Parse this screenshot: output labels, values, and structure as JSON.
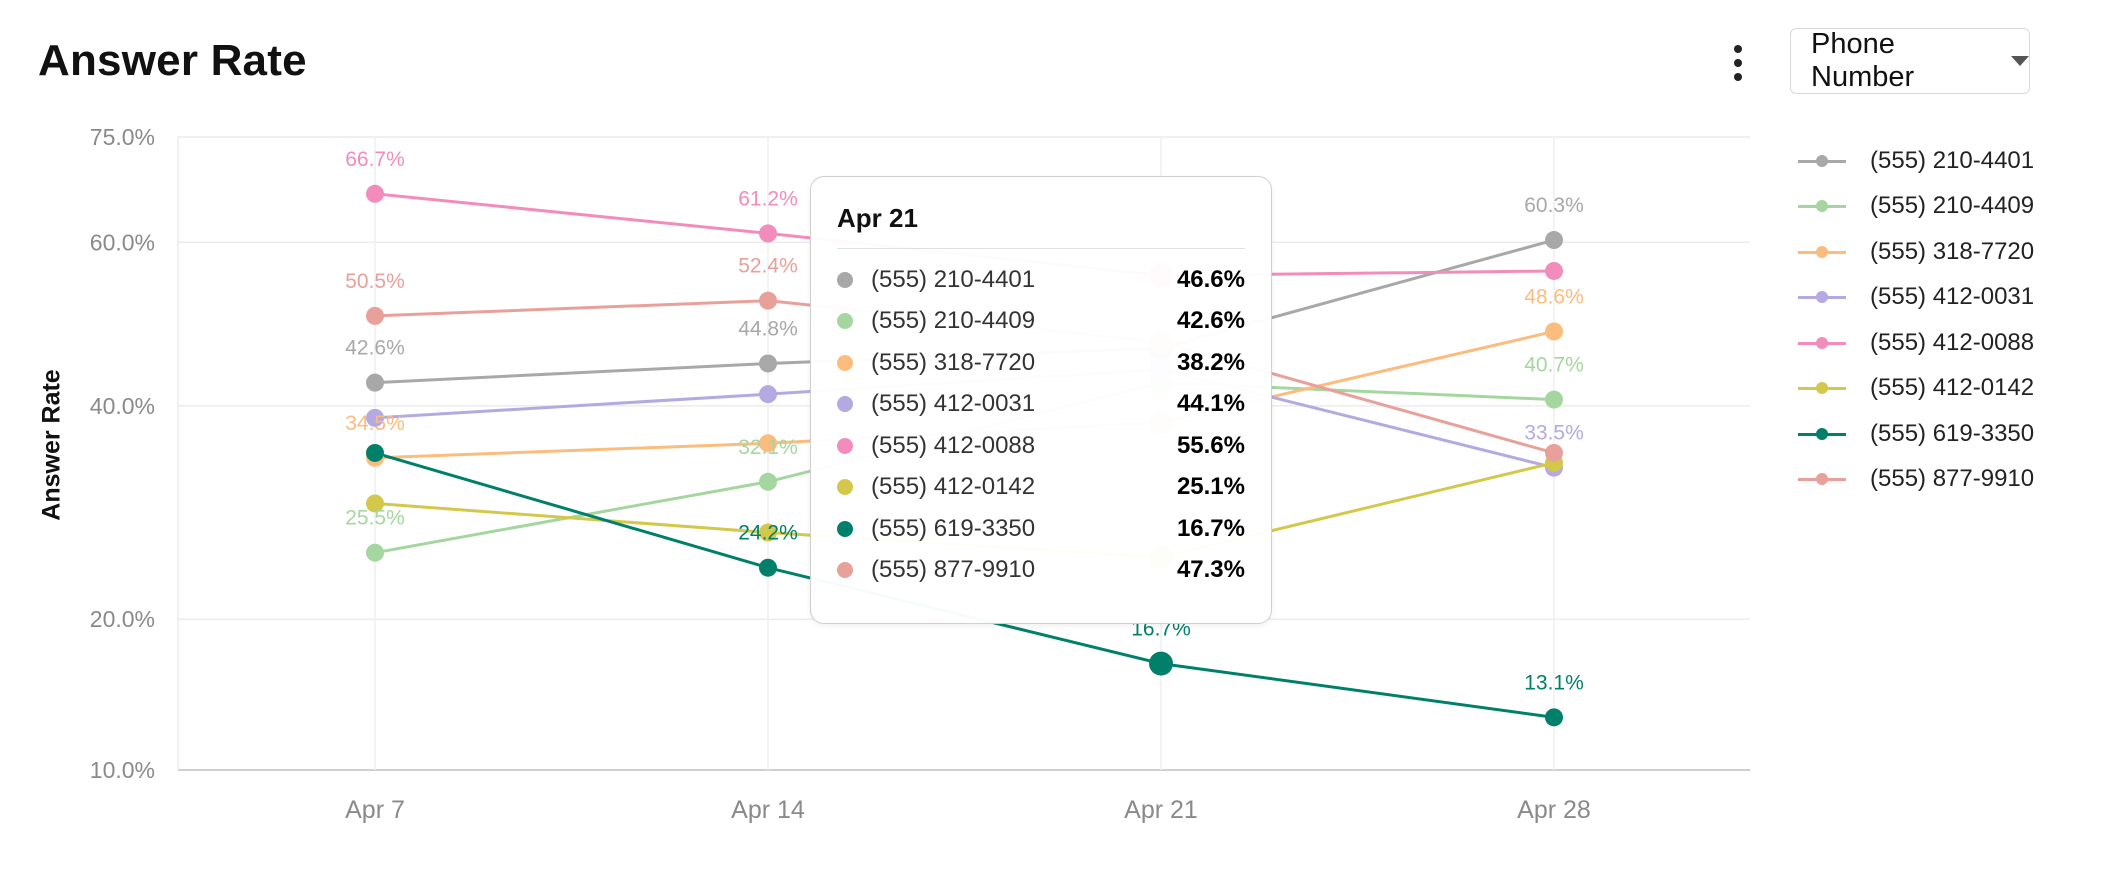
{
  "header": {
    "title": "Answer Rate",
    "dropdown_label": "Phone Number"
  },
  "chart_data": {
    "type": "line",
    "title": "Answer Rate",
    "ylabel": "Answer Rate",
    "xlabel": "",
    "categories": [
      "Apr 7",
      "Apr 14",
      "Apr 21",
      "Apr 28"
    ],
    "y_ticks": [
      "10.0%",
      "20.0%",
      "40.0%",
      "60.0%",
      "75.0%"
    ],
    "y_scale": "sqrt",
    "ylim": [
      10,
      75
    ],
    "grid": true,
    "legend_position": "right",
    "series": [
      {
        "name": "(555) 210-4401",
        "color": "#a8a8a8",
        "values": [
          42.6,
          44.8,
          46.6,
          60.3
        ],
        "labels": [
          "42.6%",
          "44.8%",
          "",
          "60.3%"
        ]
      },
      {
        "name": "(555) 210-4409",
        "color": "#a5d6a0",
        "values": [
          25.5,
          32.1,
          42.6,
          40.7
        ],
        "labels": [
          "25.5%",
          "32.1%",
          "",
          "40.7%"
        ]
      },
      {
        "name": "(555) 318-7720",
        "color": "#fbbc7d",
        "values": [
          34.5,
          36.0,
          38.2,
          48.6
        ],
        "labels": [
          "34.5%",
          "",
          "",
          "48.6%"
        ]
      },
      {
        "name": "(555) 412-0031",
        "color": "#b4a9e0",
        "values": [
          38.7,
          41.3,
          44.1,
          33.5
        ],
        "labels": [
          "",
          "",
          "",
          "33.5%"
        ]
      },
      {
        "name": "(555) 412-0088",
        "color": "#f28cbc",
        "values": [
          66.7,
          61.2,
          55.6,
          56.2
        ],
        "labels": [
          "66.7%",
          "61.2%",
          "",
          ""
        ]
      },
      {
        "name": "(555) 412-0142",
        "color": "#d4c84c",
        "values": [
          30.0,
          27.3,
          25.1,
          34.0
        ],
        "labels": [
          "",
          "",
          "",
          ""
        ]
      },
      {
        "name": "(555) 619-3350",
        "color": "#00806a",
        "values": [
          35.0,
          24.2,
          16.7,
          13.1
        ],
        "labels": [
          "",
          "24.2%",
          "16.7%",
          "13.1%"
        ]
      },
      {
        "name": "(555) 877-9910",
        "color": "#e8a09a",
        "values": [
          50.5,
          52.4,
          47.3,
          35.0
        ],
        "labels": [
          "50.5%",
          "52.4%",
          "",
          ""
        ]
      }
    ],
    "tooltip": {
      "title": "Apr 21",
      "rows": [
        {
          "name": "(555) 210-4401",
          "value": "46.6%",
          "color": "#a8a8a8"
        },
        {
          "name": "(555) 210-4409",
          "value": "42.6%",
          "color": "#a5d6a0"
        },
        {
          "name": "(555) 318-7720",
          "value": "38.2%",
          "color": "#fbbc7d"
        },
        {
          "name": "(555) 412-0031",
          "value": "44.1%",
          "color": "#b4a9e0"
        },
        {
          "name": "(555) 412-0088",
          "value": "55.6%",
          "color": "#f28cbc"
        },
        {
          "name": "(555) 412-0142",
          "value": "25.1%",
          "color": "#d4c84c"
        },
        {
          "name": "(555) 619-3350",
          "value": "16.7%",
          "color": "#00806a"
        },
        {
          "name": "(555) 877-9910",
          "value": "47.3%",
          "color": "#e8a09a"
        }
      ]
    }
  }
}
